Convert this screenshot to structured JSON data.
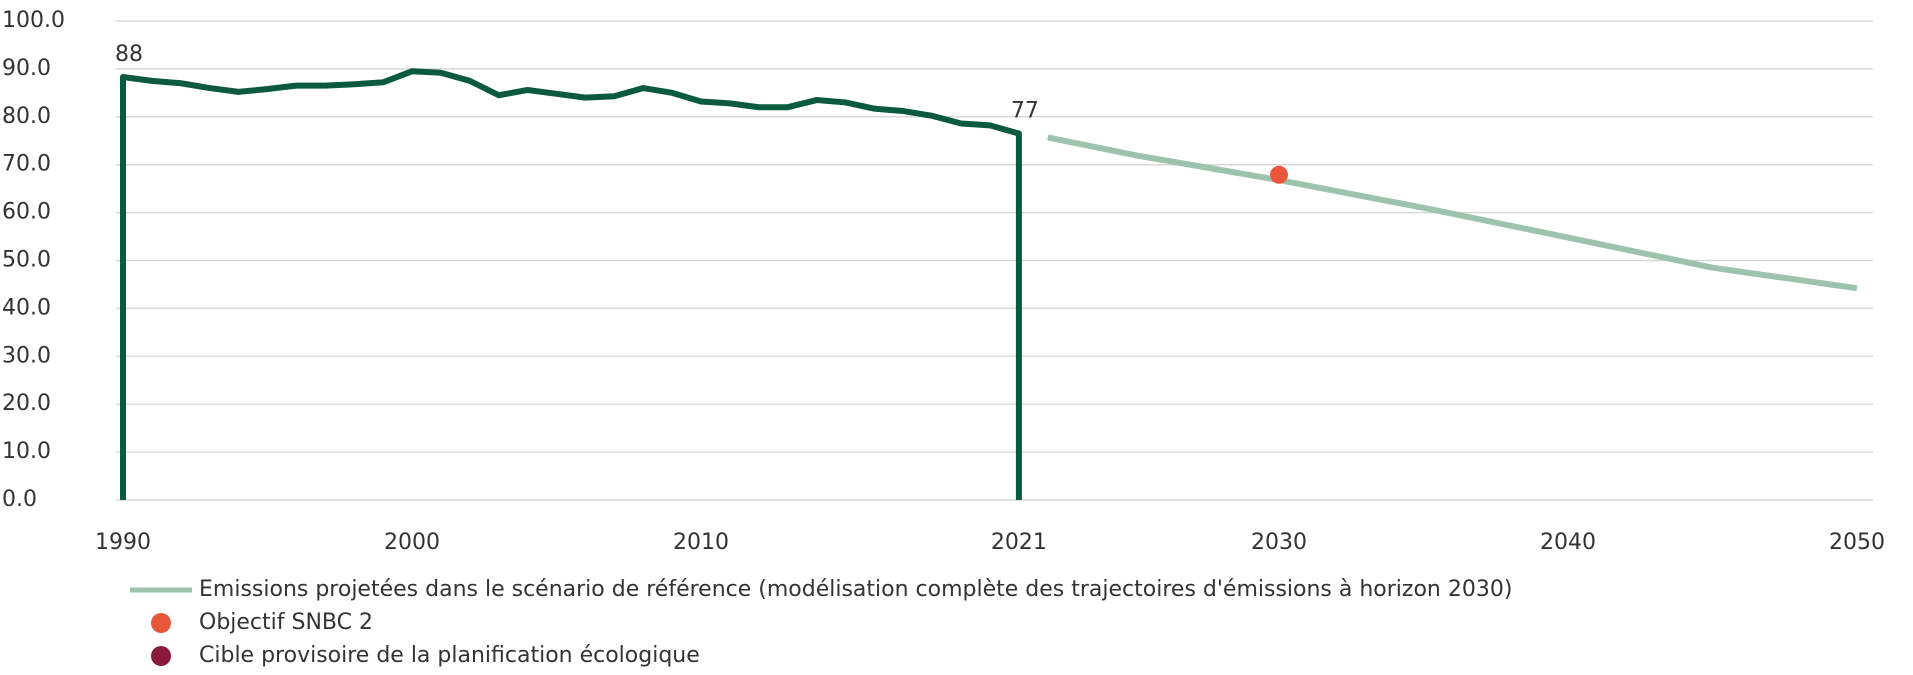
{
  "chart_data": {
    "type": "line",
    "xlim": [
      1990,
      2050
    ],
    "xticks": [
      1990,
      2000,
      2010,
      2021,
      2030,
      2040,
      2050
    ],
    "ylim": [
      0,
      100
    ],
    "yticks": [
      {
        "value": 0,
        "label": "0.0"
      },
      {
        "value": 10,
        "label": "10.0"
      },
      {
        "value": 20,
        "label": "20.0"
      },
      {
        "value": 30,
        "label": "30.0"
      },
      {
        "value": 40,
        "label": "40.0"
      },
      {
        "value": 50,
        "label": "50.0"
      },
      {
        "value": 60,
        "label": "60.0"
      },
      {
        "value": 70,
        "label": "70.0"
      },
      {
        "value": 80,
        "label": "80.0"
      },
      {
        "value": 90,
        "label": "90.0"
      },
      {
        "value": 100,
        "label": "100.0"
      }
    ],
    "grid": true,
    "series": [
      {
        "type": "line",
        "color": "#0b5a3e",
        "x": [
          1990,
          1990,
          1991,
          1992,
          1993,
          1994,
          1995,
          1996,
          1997,
          1998,
          1999,
          2000,
          2001,
          2002,
          2003,
          2004,
          2005,
          2006,
          2007,
          2008,
          2009,
          2010,
          2011,
          2012,
          2013,
          2014,
          2015,
          2016,
          2017,
          2018,
          2019,
          2020,
          2021,
          2021
        ],
        "values": [
          0,
          88.3,
          87.5,
          87,
          86,
          85.2,
          85.8,
          86.5,
          86.5,
          86.8,
          87.2,
          89.5,
          89.2,
          87.5,
          84.5,
          85.6,
          84.8,
          84,
          84.3,
          86,
          85,
          83.2,
          82.8,
          82,
          82,
          83.5,
          83,
          81.7,
          81.2,
          80.2,
          78.6,
          78.2,
          76.5,
          0
        ],
        "value_labels": [
          null,
          "88",
          null,
          null,
          null,
          null,
          null,
          null,
          null,
          null,
          null,
          null,
          null,
          null,
          null,
          null,
          null,
          null,
          null,
          null,
          null,
          null,
          null,
          null,
          null,
          null,
          null,
          null,
          null,
          null,
          null,
          null,
          "77",
          null
        ]
      },
      {
        "type": "line",
        "name": "Emissions projetées dans le scénario de référence (modélisation complète des trajectoires d'émissions à horizon 2030)",
        "color": "#9cc3b0",
        "x": [
          2022,
          2025,
          2030,
          2035,
          2040,
          2045,
          2050
        ],
        "values": [
          75.7,
          72,
          66.8,
          61,
          54.8,
          48.5,
          44.2
        ]
      },
      {
        "type": "scatter",
        "name": "Objectif SNBC 2",
        "color": "#e9573a",
        "x": [
          2030
        ],
        "values": [
          67.9
        ]
      },
      {
        "type": "scatter",
        "name": "Cible provisoire de la planification écologique",
        "color": "#8b1a3a",
        "x": [],
        "values": []
      }
    ]
  }
}
